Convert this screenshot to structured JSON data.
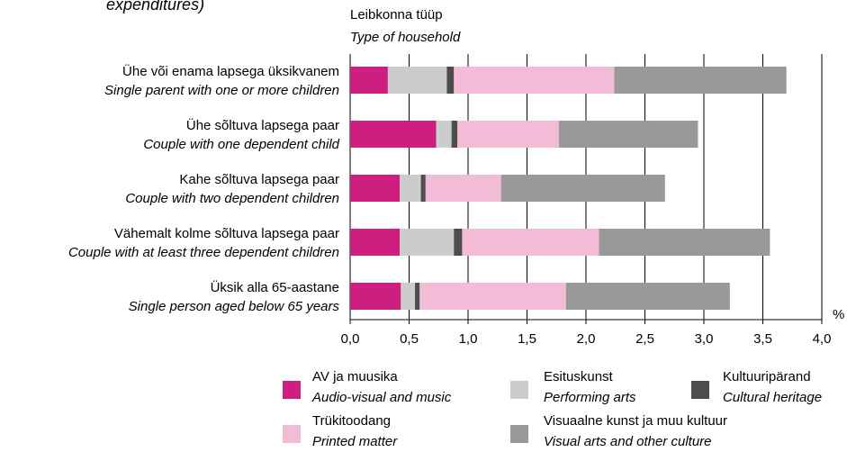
{
  "chart_data": {
    "type": "stacked_barh",
    "title": "expenditures)",
    "y_label": "Leibkonna tüüp",
    "y_label_translation": "Type of household",
    "x_unit": "%",
    "categories": [
      {
        "label": "Ühe või enama lapsega üksikvanem",
        "translation": "Single parent with one or more children"
      },
      {
        "label": "Ühe sõltuva lapsega paar",
        "translation": "Couple with one dependent child"
      },
      {
        "label": "Kahe sõltuva lapsega paar",
        "translation": "Couple with two dependent children"
      },
      {
        "label": "Vähemalt kolme sõltuva lapsega paar",
        "translation": "Couple with at least three dependent children"
      },
      {
        "label": "Üksik alla 65-aastane",
        "translation": "Single person aged below 65 years"
      }
    ],
    "series": [
      {
        "name": "AV ja muusika",
        "translation": "Audio-visual and music",
        "color": "#cc1f7f",
        "values": [
          0.32,
          0.73,
          0.42,
          0.42,
          0.43
        ]
      },
      {
        "name": "Esituskunst",
        "translation": "Performing arts",
        "color": "#cccccc",
        "values": [
          0.5,
          0.13,
          0.18,
          0.46,
          0.12
        ]
      },
      {
        "name": "Kultuuripärand",
        "translation": "Cultural heritage",
        "color": "#4d4d4d",
        "values": [
          0.06,
          0.05,
          0.04,
          0.07,
          0.04
        ]
      },
      {
        "name": "Trükitoodang",
        "translation": "Printed matter",
        "color": "#f2bcd6",
        "values": [
          1.36,
          0.86,
          0.64,
          1.16,
          1.24
        ]
      },
      {
        "name": "Visuaalne kunst ja muu kultuur",
        "translation": "Visual arts and other culture",
        "color": "#999999",
        "values": [
          1.46,
          1.18,
          1.39,
          1.45,
          1.39
        ]
      }
    ],
    "xlim": [
      0,
      4
    ],
    "xticks": [
      {
        "value": 0,
        "label": "0,0"
      },
      {
        "value": 0.5,
        "label": "0,5"
      },
      {
        "value": 1,
        "label": "1,0"
      },
      {
        "value": 1.5,
        "label": "1,5"
      },
      {
        "value": 2,
        "label": "2,0"
      },
      {
        "value": 2.5,
        "label": "2,5"
      },
      {
        "value": 3,
        "label": "3,0"
      },
      {
        "value": 3.5,
        "label": "3,5"
      },
      {
        "value": 4,
        "label": "4,0"
      }
    ],
    "grid": true
  }
}
